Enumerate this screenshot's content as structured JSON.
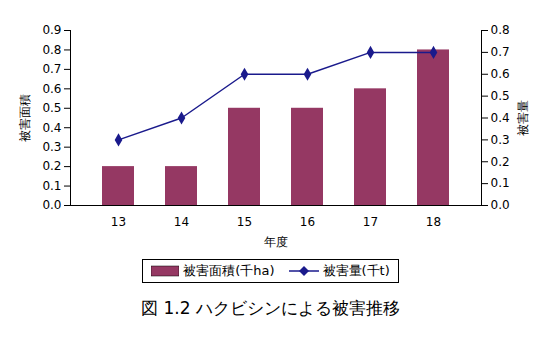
{
  "chart_data": {
    "type": "bar",
    "title": "図 1.2 ハクビシンによる被害推移",
    "x_label": "年度",
    "y_label": "被害面積",
    "y2_label": "被害量",
    "categories": [
      "13",
      "14",
      "15",
      "16",
      "17",
      "18"
    ],
    "series": [
      {
        "name": "被害面積(千ha)",
        "type": "bar",
        "color": "#953863",
        "values": [
          0.2,
          0.2,
          0.5,
          0.5,
          0.6,
          0.8
        ]
      },
      {
        "name": "被害量(千t)",
        "type": "line",
        "axis": "y2",
        "color": "#1a1a8c",
        "marker": "diamond",
        "values": [
          0.3,
          0.4,
          0.6,
          0.6,
          0.7,
          0.7
        ]
      }
    ],
    "ylim": [
      0,
      0.9
    ],
    "yticks": [
      {
        "value": 0,
        "label": "0.0"
      },
      0.1,
      0.2,
      0.3,
      0.4,
      0.5,
      0.6,
      0.7,
      0.8,
      0.9
    ],
    "y2lim": [
      0,
      0.8
    ],
    "y2ticks": [
      {
        "value": 0,
        "label": "0.0"
      },
      0.1,
      0.2,
      0.3,
      0.4,
      0.5,
      0.6,
      0.7,
      0.8
    ],
    "legend": "bottom",
    "grid": false
  }
}
